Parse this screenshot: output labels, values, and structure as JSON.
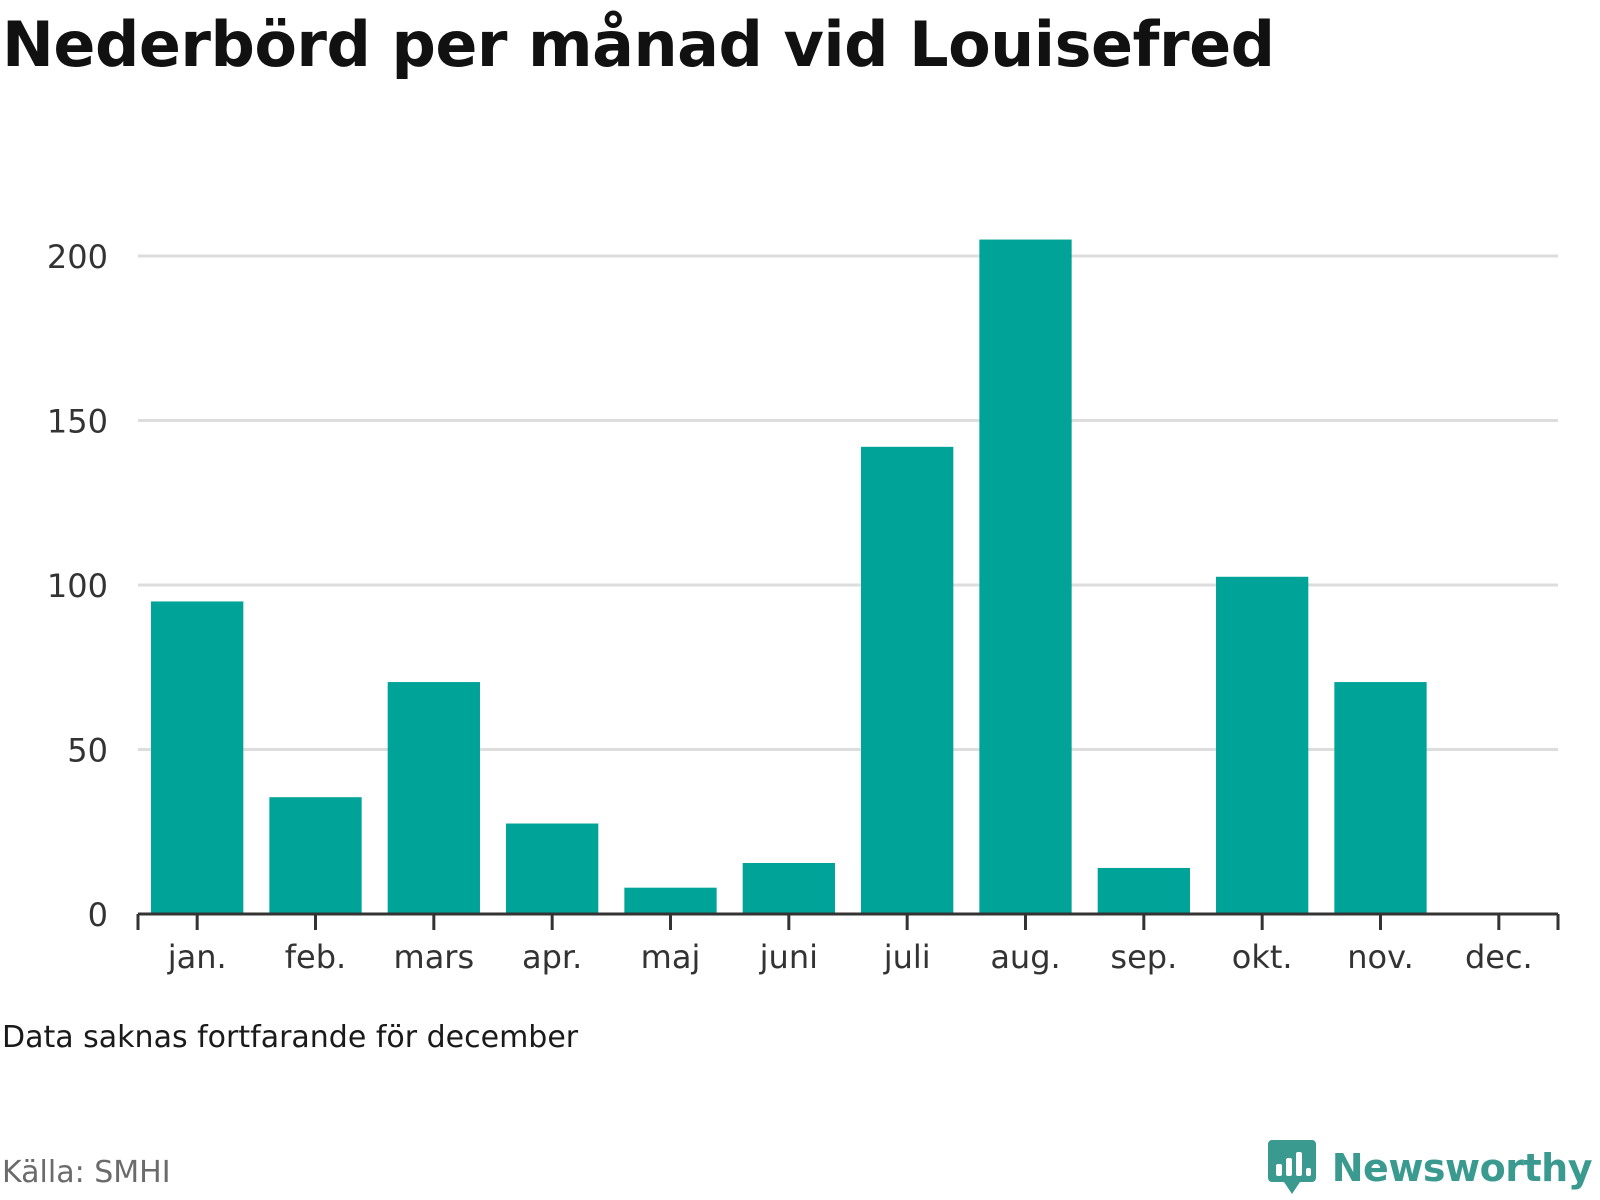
{
  "title": "Nederbörd per månad vid Louisefred",
  "note": "Data saknas fortfarande för december",
  "source": "Källa: SMHI",
  "brand": {
    "name": "Newsworthy",
    "icon": "newsworthy-logo-icon",
    "color": "#3a9a90"
  },
  "colors": {
    "bar": "#00a398",
    "grid": "#dddddd",
    "axis": "#333333",
    "tick_label": "#333333"
  },
  "chart_data": {
    "type": "bar",
    "categories": [
      "jan.",
      "feb.",
      "mars",
      "apr.",
      "maj",
      "juni",
      "juli",
      "aug.",
      "sep.",
      "okt.",
      "nov.",
      "dec."
    ],
    "values": [
      95,
      35.5,
      70.5,
      27.5,
      8,
      15.5,
      142,
      205,
      14,
      102.5,
      70.5,
      null
    ],
    "yticks": [
      0,
      50,
      100,
      150,
      200
    ],
    "ylim": [
      0,
      200
    ],
    "grid": true,
    "legend": "none",
    "title": "Nederbörd per månad vid Louisefred",
    "xlabel": "",
    "ylabel": ""
  }
}
